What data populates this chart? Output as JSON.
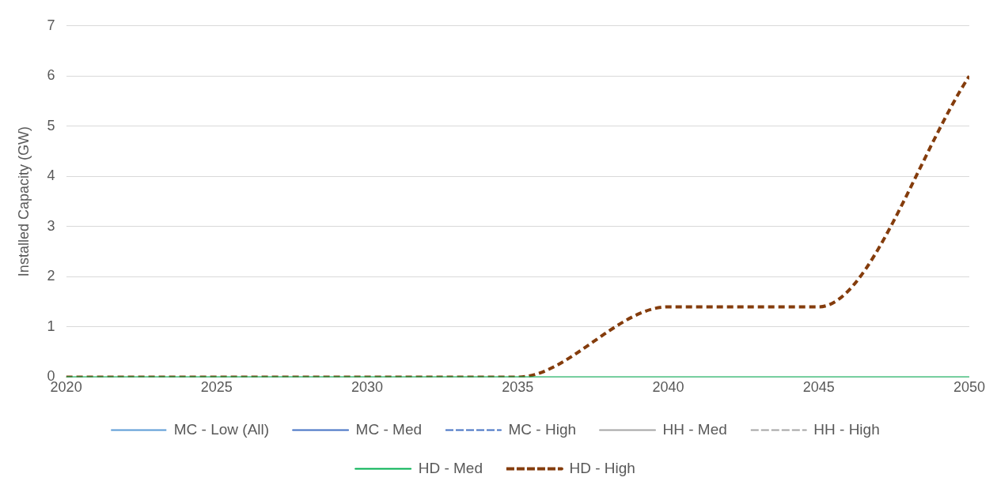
{
  "chart_data": {
    "type": "line",
    "ylabel": "Installed Capacity (GW)",
    "x": [
      2020,
      2025,
      2030,
      2035,
      2040,
      2045,
      2050
    ],
    "series": [
      {
        "name": "MC - Low (All)",
        "color": "#5b9bd5",
        "line_style": "dotted",
        "values": [
          null,
          null,
          null,
          null,
          null,
          null,
          null
        ]
      },
      {
        "name": "MC - Med",
        "color": "#4472c4",
        "line_style": "solid",
        "values": [
          null,
          null,
          null,
          null,
          null,
          null,
          null
        ]
      },
      {
        "name": "MC - High",
        "color": "#4472c4",
        "line_style": "dashed",
        "values": [
          null,
          null,
          null,
          null,
          null,
          null,
          null
        ]
      },
      {
        "name": "HH - Med",
        "color": "#a5a5a5",
        "line_style": "solid",
        "values": [
          null,
          null,
          null,
          null,
          null,
          null,
          null
        ]
      },
      {
        "name": "HH - High",
        "color": "#a5a5a5",
        "line_style": "dashed",
        "values": [
          null,
          null,
          null,
          null,
          null,
          null,
          null
        ]
      },
      {
        "name": "HD - Med",
        "color": "#00b050",
        "line_style": "solid",
        "values": [
          0,
          0,
          0,
          0,
          0,
          0,
          0
        ]
      },
      {
        "name": "HD - High",
        "color": "#843c0c",
        "line_style": "dashed",
        "values": [
          0,
          0,
          0,
          0,
          1.4,
          1.4,
          6
        ]
      }
    ],
    "xlim": [
      2020,
      2050
    ],
    "xticks": [
      2020,
      2025,
      2030,
      2035,
      2040,
      2045,
      2050
    ],
    "ylim": [
      0,
      7
    ],
    "yticks": [
      0,
      1,
      2,
      3,
      4,
      5,
      6,
      7
    ],
    "grid": "y",
    "legend": "bottom",
    "marker": "none"
  }
}
